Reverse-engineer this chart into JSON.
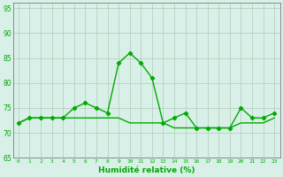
{
  "x": [
    0,
    1,
    2,
    3,
    4,
    5,
    6,
    7,
    8,
    9,
    10,
    11,
    12,
    13,
    14,
    15,
    16,
    17,
    18,
    19,
    20,
    21,
    22,
    23
  ],
  "line1": [
    72,
    73,
    73,
    73,
    73,
    75,
    76,
    75,
    74,
    84,
    86,
    84,
    81,
    72,
    73,
    74,
    71,
    71,
    71,
    71,
    75,
    73,
    73,
    74
  ],
  "line2": [
    72,
    73,
    73,
    73,
    73,
    73,
    73,
    73,
    73,
    73,
    72,
    72,
    72,
    72,
    71,
    71,
    71,
    71,
    71,
    71,
    72,
    72,
    72,
    73
  ],
  "ylim": [
    65,
    96
  ],
  "yticks": [
    65,
    70,
    75,
    80,
    85,
    90,
    95
  ],
  "xlim": [
    -0.5,
    23.5
  ],
  "xticks": [
    0,
    1,
    2,
    3,
    4,
    5,
    6,
    7,
    8,
    9,
    10,
    11,
    12,
    13,
    14,
    15,
    16,
    17,
    18,
    19,
    20,
    21,
    22,
    23
  ],
  "xlabel": "Humidité relative (%)",
  "line_color": "#00aa00",
  "bg_color": "#d8f0e8",
  "grid_color": "#b0ccb8",
  "marker": "D",
  "marker_size": 2.2,
  "linewidth": 1.0,
  "spine_color": "#888888"
}
